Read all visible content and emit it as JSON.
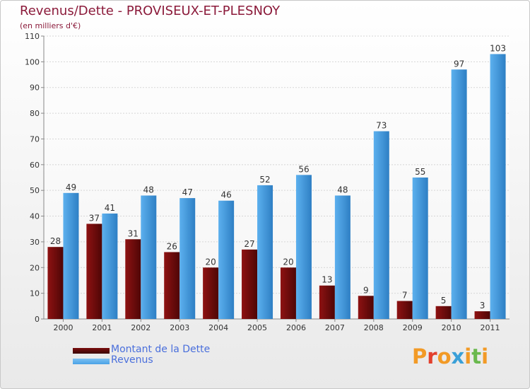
{
  "title": "Revenus/Dette - PROVISEUX-ET-PLESNOY",
  "subtitle": "(en milliers d'€)",
  "logo": {
    "text": "Proxiti",
    "colors": [
      "#f29a26",
      "#e2402d",
      "#f29a26",
      "#3aa0d8",
      "#f29a26",
      "#6ab94e",
      "#f29a26"
    ]
  },
  "colors": {
    "debt": "#7a0e0e",
    "revenue": "#4aa2e6",
    "title": "#8b1a3a",
    "legend_text": "#4a6fdc"
  },
  "chart_data": {
    "type": "bar",
    "categories": [
      "2000",
      "2001",
      "2002",
      "2003",
      "2004",
      "2005",
      "2006",
      "2007",
      "2008",
      "2009",
      "2010",
      "2011"
    ],
    "series": [
      {
        "name": "Montant de la Dette",
        "values": [
          28,
          37,
          31,
          26,
          20,
          27,
          20,
          13,
          9,
          7,
          5,
          3
        ]
      },
      {
        "name": "Revenus",
        "values": [
          49,
          41,
          48,
          47,
          46,
          52,
          56,
          48,
          73,
          55,
          97,
          103
        ]
      }
    ],
    "ylim": [
      0,
      110
    ],
    "yticks": [
      0,
      10,
      20,
      30,
      40,
      50,
      60,
      70,
      80,
      90,
      100,
      110
    ],
    "grid": true,
    "legend_position": "bottom-left"
  }
}
